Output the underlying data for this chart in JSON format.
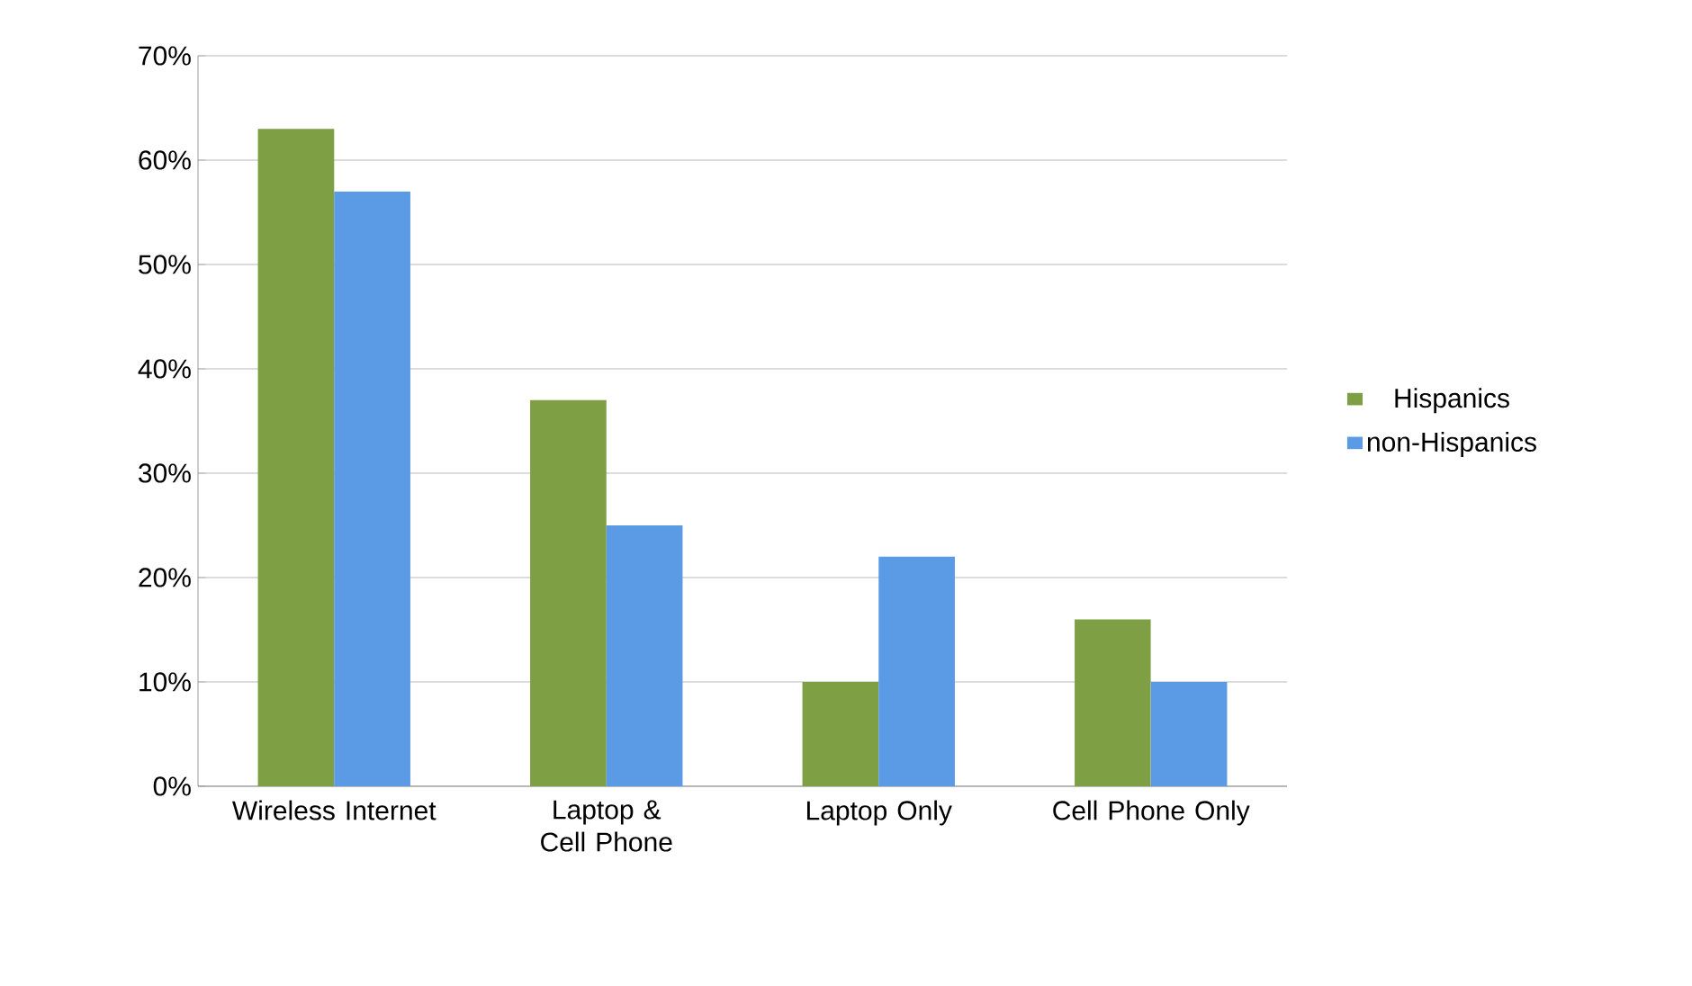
{
  "chart_data": {
    "type": "bar",
    "categories": [
      "Wireless Internet",
      "Laptop & Cell Phone",
      "Laptop Only",
      "Cell Phone Only"
    ],
    "series": [
      {
        "name": "Hispanics",
        "color": "#7f9f45",
        "values": [
          63,
          37,
          10,
          16
        ]
      },
      {
        "name": "non-Hispanics",
        "color": "#5b9be6",
        "values": [
          57,
          25,
          22,
          10
        ]
      }
    ],
    "ylim": [
      0,
      70
    ],
    "yticks": [
      {
        "value": 0,
        "label": "0%"
      },
      {
        "value": 10,
        "label": "10%"
      },
      {
        "value": 20,
        "label": "20%"
      },
      {
        "value": 30,
        "label": "30%"
      },
      {
        "value": 40,
        "label": "40%"
      },
      {
        "value": 50,
        "label": "50%"
      },
      {
        "value": 60,
        "label": "60%"
      },
      {
        "value": 70,
        "label": "70%"
      }
    ],
    "grid": "y",
    "legend": "right"
  }
}
